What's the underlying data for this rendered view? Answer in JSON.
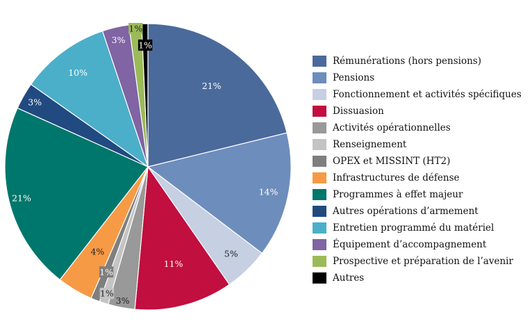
{
  "chart_data": {
    "type": "pie",
    "title": "",
    "start_angle_deg": 0,
    "direction": "clockwise",
    "legend_position": "right",
    "slices": [
      {
        "label": "Rémunérations (hors pensions)",
        "value": 21,
        "display": "21%",
        "color": "#4a6a9b",
        "text_color": "#ffffff"
      },
      {
        "label": "Pensions",
        "value": 14,
        "display": "14%",
        "color": "#6d8dbc",
        "text_color": "#ffffff"
      },
      {
        "label": "Fonctionnement et activités spécifiques",
        "value": 5,
        "display": "5%",
        "color": "#c6d0e2",
        "text_color": "#222222"
      },
      {
        "label": "Dissuasion",
        "value": 11,
        "display": "11%",
        "color": "#c10f3f",
        "text_color": "#ffffff"
      },
      {
        "label": "Activités opérationnelles",
        "value": 3,
        "display": "3%",
        "color": "#999999",
        "text_color": "#222222"
      },
      {
        "label": "Renseignement",
        "value": 1,
        "display": "1%",
        "color": "#c4c4c4",
        "text_color": "#222222"
      },
      {
        "label": "OPEX et MISSINT (HT2)",
        "value": 1,
        "display": "1%",
        "color": "#7f7f7f",
        "text_color": "#ffffff"
      },
      {
        "label": "Infrastructures de défense",
        "value": 4,
        "display": "4%",
        "color": "#f79a45",
        "text_color": "#222222"
      },
      {
        "label": "Programmes à effet majeur",
        "value": 21,
        "display": "21%",
        "color": "#00776c",
        "text_color": "#ffffff"
      },
      {
        "label": "Autres opérations d’armement",
        "value": 3,
        "display": "3%",
        "color": "#214a80",
        "text_color": "#ffffff"
      },
      {
        "label": "Entretien programmé du matériel",
        "value": 10,
        "display": "10%",
        "color": "#4bafc9",
        "text_color": "#ffffff"
      },
      {
        "label": "Équipement d’accompagnement",
        "value": 3,
        "display": "3%",
        "color": "#8064a3",
        "text_color": "#ffffff"
      },
      {
        "label": "Prospective et préparation de l’avenir",
        "value": 1.4,
        "display": "1%",
        "color": "#9bbb59",
        "text_color": "#222222"
      },
      {
        "label": "Autres",
        "value": 0.7,
        "display": "1%",
        "color": "#000000",
        "text_color": "#ffffff"
      }
    ]
  }
}
